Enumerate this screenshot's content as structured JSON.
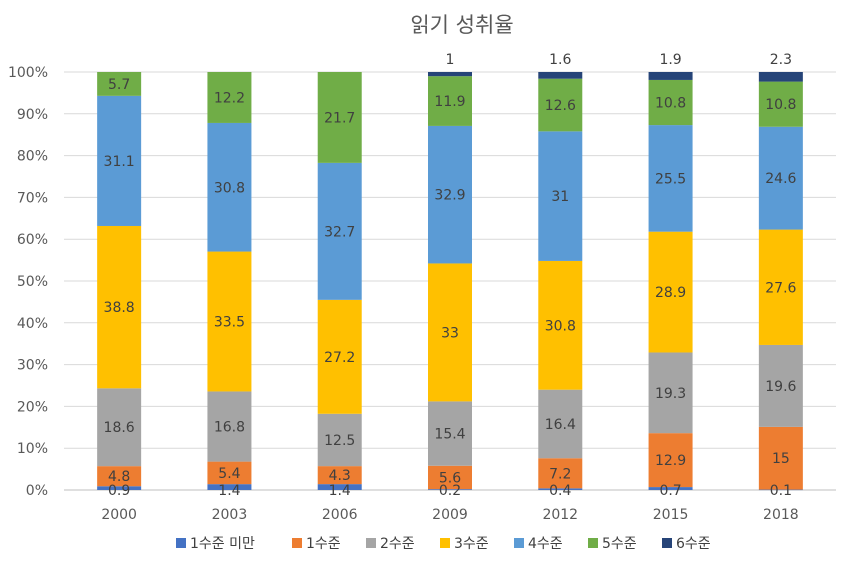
{
  "chart_data": {
    "type": "bar",
    "stacked": "percent",
    "title": "읽기 성취율",
    "xlabel": "",
    "ylabel": "",
    "ylim": [
      0,
      100
    ],
    "yticks": [
      "0%",
      "10%",
      "20%",
      "30%",
      "40%",
      "50%",
      "60%",
      "70%",
      "80%",
      "90%",
      "100%"
    ],
    "categories": [
      "2000",
      "2003",
      "2006",
      "2009",
      "2012",
      "2015",
      "2018"
    ],
    "series": [
      {
        "name": "1수준 미만",
        "color": "#4472C4",
        "values": [
          0.9,
          1.4,
          1.4,
          0.2,
          0.4,
          0.7,
          0.1
        ]
      },
      {
        "name": "1수준",
        "color": "#ED7D31",
        "values": [
          4.8,
          5.4,
          4.3,
          5.6,
          7.2,
          12.9,
          15
        ]
      },
      {
        "name": "2수준",
        "color": "#A5A5A5",
        "values": [
          18.6,
          16.8,
          12.5,
          15.4,
          16.4,
          19.3,
          19.6
        ]
      },
      {
        "name": "3수준",
        "color": "#FFC000",
        "values": [
          38.8,
          33.5,
          27.2,
          33,
          30.8,
          28.9,
          27.6
        ]
      },
      {
        "name": "4수준",
        "color": "#5B9BD5",
        "values": [
          31.1,
          30.8,
          32.7,
          32.9,
          31,
          25.5,
          24.6
        ]
      },
      {
        "name": "5수준",
        "color": "#70AD47",
        "values": [
          5.7,
          12.2,
          21.7,
          11.9,
          12.6,
          10.8,
          10.8
        ]
      },
      {
        "name": "6수준",
        "color": "#264478",
        "values": [
          0,
          0,
          0,
          1,
          1.6,
          1.9,
          2.3
        ]
      }
    ],
    "legend": "bottom"
  }
}
